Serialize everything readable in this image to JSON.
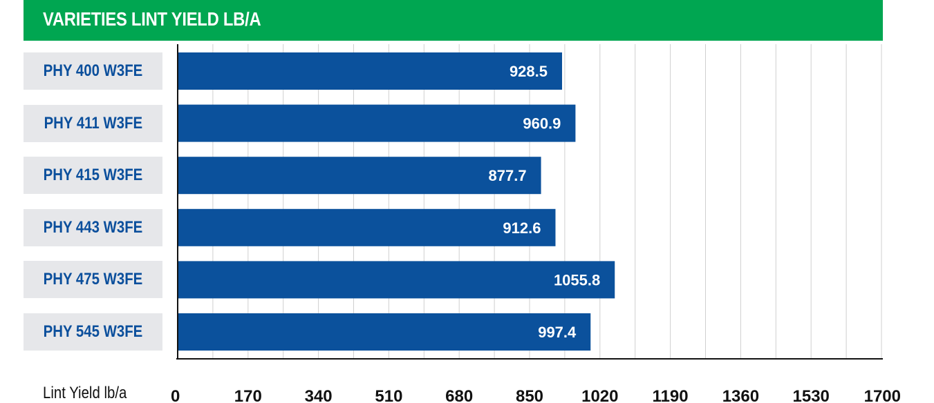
{
  "title": "VARIETIES LINT YIELD LB/A",
  "colors": {
    "title_bg": "#00a651",
    "bar": "#0b519c",
    "label_bg": "#e6e7ea",
    "label_text": "#0b4f9c",
    "grid": "#cfcfcf"
  },
  "chart_data": {
    "type": "bar",
    "orientation": "horizontal",
    "title": "VARIETIES LINT YIELD LB/A",
    "xlabel": "Lint Yield lb/a",
    "ylabel": "",
    "categories": [
      "PHY 400 W3FE",
      "PHY 411 W3FE",
      "PHY 415 W3FE",
      "PHY 443 W3FE",
      "PHY 475 W3FE",
      "PHY 545 W3FE"
    ],
    "values": [
      928.5,
      960.9,
      877.7,
      912.6,
      1055.8,
      997.4
    ],
    "value_labels": [
      "928.5",
      "960.9",
      "877.7",
      "912.6",
      "1055.8",
      "997.4"
    ],
    "xlim": [
      0,
      1700
    ],
    "x_ticks": [
      0,
      170,
      340,
      510,
      680,
      850,
      1020,
      1190,
      1360,
      1530,
      1700
    ],
    "x_tick_labels": [
      "0",
      "170",
      "340",
      "510",
      "680",
      "850",
      "1020",
      "1190",
      "1360",
      "1530",
      "1700"
    ],
    "grid": true,
    "legend": "none"
  }
}
